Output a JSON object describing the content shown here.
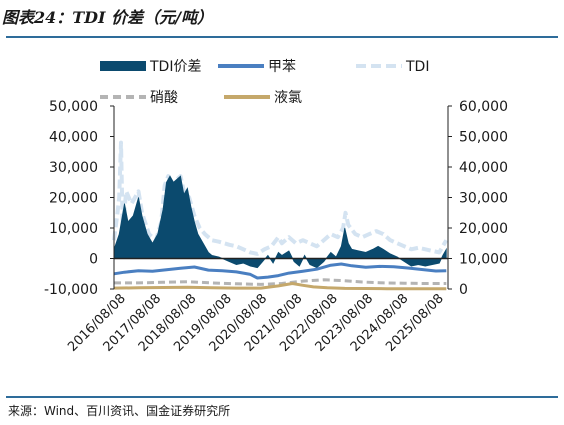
{
  "title": "图表24：TDI 价差（元/吨）",
  "source": "来源：Wind、百川资讯、国金证券研究所",
  "colors": {
    "spread": "#0b4a6e",
    "toluene": "#4a7fc1",
    "tdi": "#d4e3f1",
    "nitric": "#b4b4b4",
    "chlorine": "#c5a86b",
    "rule": "#2e6c9a"
  },
  "chart_data": {
    "type": "area",
    "legend": [
      {
        "name": "TDI价差",
        "style": "area"
      },
      {
        "name": "甲苯",
        "style": "line"
      },
      {
        "name": "TDI",
        "style": "dashed"
      },
      {
        "name": "硝酸",
        "style": "dashed"
      },
      {
        "name": "液氯",
        "style": "line"
      }
    ],
    "x_ticks": [
      "2016/08/08",
      "2017/08/08",
      "2018/08/08",
      "2019/08/08",
      "2020/08/08",
      "2021/08/08",
      "2022/08/08",
      "2023/08/08",
      "2024/08/08",
      "2025/08/08"
    ],
    "x_range": [
      2016.2,
      2025.75
    ],
    "y_left": {
      "ticks": [
        "-10,000",
        "0",
        "10,000",
        "20,000",
        "30,000",
        "40,000",
        "50,000"
      ],
      "range": [
        -10000,
        50000
      ]
    },
    "y_right": {
      "ticks": [
        "0",
        "10,000",
        "20,000",
        "30,000",
        "40,000",
        "50,000",
        "60,000"
      ],
      "range": [
        0,
        60000
      ]
    },
    "series": [
      {
        "name": "TDI价差",
        "axis": "left",
        "points": [
          [
            2016.2,
            3000
          ],
          [
            2016.35,
            8000
          ],
          [
            2016.5,
            18000
          ],
          [
            2016.6,
            12000
          ],
          [
            2016.75,
            14000
          ],
          [
            2016.9,
            20000
          ],
          [
            2017.0,
            14000
          ],
          [
            2017.15,
            8000
          ],
          [
            2017.3,
            5000
          ],
          [
            2017.45,
            8000
          ],
          [
            2017.6,
            16000
          ],
          [
            2017.7,
            25000
          ],
          [
            2017.8,
            27000
          ],
          [
            2017.9,
            25000
          ],
          [
            2018.0,
            26000
          ],
          [
            2018.1,
            27000
          ],
          [
            2018.2,
            21000
          ],
          [
            2018.3,
            23000
          ],
          [
            2018.4,
            17000
          ],
          [
            2018.5,
            12000
          ],
          [
            2018.6,
            8000
          ],
          [
            2018.75,
            5000
          ],
          [
            2018.9,
            2000
          ],
          [
            2019.0,
            1000
          ],
          [
            2019.2,
            500
          ],
          [
            2019.5,
            -1000
          ],
          [
            2019.7,
            -2000
          ],
          [
            2019.9,
            -1500
          ],
          [
            2020.1,
            -2500
          ],
          [
            2020.3,
            -3000
          ],
          [
            2020.45,
            -1000
          ],
          [
            2020.6,
            1000
          ],
          [
            2020.75,
            -1500
          ],
          [
            2020.9,
            2000
          ],
          [
            2021.0,
            1000
          ],
          [
            2021.2,
            2500
          ],
          [
            2021.35,
            -1000
          ],
          [
            2021.5,
            -2500
          ],
          [
            2021.65,
            1000
          ],
          [
            2021.8,
            -2000
          ],
          [
            2022.0,
            -3000
          ],
          [
            2022.2,
            -1000
          ],
          [
            2022.4,
            2000
          ],
          [
            2022.55,
            500
          ],
          [
            2022.7,
            4000
          ],
          [
            2022.8,
            10000
          ],
          [
            2022.9,
            5000
          ],
          [
            2023.0,
            3000
          ],
          [
            2023.2,
            2500
          ],
          [
            2023.4,
            2000
          ],
          [
            2023.6,
            3000
          ],
          [
            2023.75,
            4000
          ],
          [
            2023.9,
            3000
          ],
          [
            2024.1,
            1500
          ],
          [
            2024.3,
            500
          ],
          [
            2024.5,
            -1000
          ],
          [
            2024.7,
            -2500
          ],
          [
            2024.9,
            -2000
          ],
          [
            2025.1,
            -2500
          ],
          [
            2025.3,
            -2000
          ],
          [
            2025.5,
            -1500
          ],
          [
            2025.6,
            1000
          ],
          [
            2025.7,
            3000
          ]
        ]
      },
      {
        "name": "TDI",
        "axis": "right",
        "points": [
          [
            2016.2,
            16000
          ],
          [
            2016.3,
            25000
          ],
          [
            2016.35,
            30000
          ],
          [
            2016.4,
            48000
          ],
          [
            2016.45,
            20000
          ],
          [
            2016.55,
            32000
          ],
          [
            2016.7,
            28000
          ],
          [
            2016.9,
            32000
          ],
          [
            2017.0,
            25000
          ],
          [
            2017.2,
            18000
          ],
          [
            2017.4,
            16000
          ],
          [
            2017.55,
            22000
          ],
          [
            2017.65,
            34000
          ],
          [
            2017.75,
            37000
          ],
          [
            2017.9,
            33000
          ],
          [
            2018.0,
            36000
          ],
          [
            2018.1,
            37000
          ],
          [
            2018.2,
            32000
          ],
          [
            2018.35,
            30000
          ],
          [
            2018.5,
            24000
          ],
          [
            2018.65,
            20000
          ],
          [
            2018.8,
            18000
          ],
          [
            2019.0,
            16000
          ],
          [
            2019.2,
            15500
          ],
          [
            2019.5,
            14500
          ],
          [
            2019.7,
            14000
          ],
          [
            2019.9,
            13000
          ],
          [
            2020.1,
            12000
          ],
          [
            2020.3,
            11500
          ],
          [
            2020.5,
            13000
          ],
          [
            2020.7,
            14000
          ],
          [
            2020.9,
            17000
          ],
          [
            2021.0,
            15000
          ],
          [
            2021.2,
            17000
          ],
          [
            2021.4,
            15000
          ],
          [
            2021.6,
            16000
          ],
          [
            2021.8,
            15000
          ],
          [
            2022.0,
            14000
          ],
          [
            2022.2,
            16000
          ],
          [
            2022.4,
            18000
          ],
          [
            2022.6,
            17000
          ],
          [
            2022.75,
            20000
          ],
          [
            2022.82,
            25000
          ],
          [
            2022.9,
            21000
          ],
          [
            2023.1,
            18000
          ],
          [
            2023.3,
            17000
          ],
          [
            2023.5,
            18000
          ],
          [
            2023.7,
            19000
          ],
          [
            2023.9,
            18000
          ],
          [
            2024.1,
            16000
          ],
          [
            2024.3,
            15000
          ],
          [
            2024.5,
            14000
          ],
          [
            2024.7,
            13000
          ],
          [
            2024.9,
            13500
          ],
          [
            2025.1,
            13000
          ],
          [
            2025.3,
            12500
          ],
          [
            2025.5,
            12000
          ],
          [
            2025.6,
            14000
          ],
          [
            2025.7,
            16000
          ]
        ]
      },
      {
        "name": "甲苯",
        "axis": "right",
        "points": [
          [
            2016.2,
            5000
          ],
          [
            2016.5,
            5500
          ],
          [
            2016.9,
            6000
          ],
          [
            2017.3,
            5800
          ],
          [
            2017.7,
            6300
          ],
          [
            2018.1,
            6800
          ],
          [
            2018.5,
            7200
          ],
          [
            2018.9,
            6200
          ],
          [
            2019.3,
            6000
          ],
          [
            2019.7,
            5600
          ],
          [
            2020.1,
            4800
          ],
          [
            2020.3,
            3600
          ],
          [
            2020.6,
            3900
          ],
          [
            2020.9,
            4400
          ],
          [
            2021.2,
            5200
          ],
          [
            2021.6,
            5800
          ],
          [
            2022.0,
            6500
          ],
          [
            2022.4,
            7800
          ],
          [
            2022.7,
            8200
          ],
          [
            2023.0,
            7600
          ],
          [
            2023.4,
            7100
          ],
          [
            2023.8,
            7400
          ],
          [
            2024.2,
            7300
          ],
          [
            2024.6,
            6900
          ],
          [
            2025.0,
            6400
          ],
          [
            2025.4,
            5900
          ],
          [
            2025.7,
            6000
          ]
        ]
      },
      {
        "name": "硝酸",
        "axis": "right",
        "points": [
          [
            2016.2,
            2000
          ],
          [
            2016.9,
            2000
          ],
          [
            2017.6,
            2200
          ],
          [
            2018.3,
            2400
          ],
          [
            2019.0,
            2000
          ],
          [
            2019.7,
            1700
          ],
          [
            2020.4,
            1500
          ],
          [
            2021.0,
            1800
          ],
          [
            2021.6,
            2600
          ],
          [
            2022.2,
            3000
          ],
          [
            2022.7,
            2800
          ],
          [
            2023.3,
            2300
          ],
          [
            2023.9,
            2000
          ],
          [
            2024.5,
            1900
          ],
          [
            2025.1,
            1800
          ],
          [
            2025.7,
            1800
          ]
        ]
      },
      {
        "name": "液氯",
        "axis": "right",
        "points": [
          [
            2016.2,
            300
          ],
          [
            2016.9,
            400
          ],
          [
            2017.6,
            500
          ],
          [
            2018.3,
            600
          ],
          [
            2019.0,
            400
          ],
          [
            2019.7,
            300
          ],
          [
            2020.4,
            300
          ],
          [
            2020.9,
            1000
          ],
          [
            2021.3,
            1800
          ],
          [
            2021.6,
            1200
          ],
          [
            2021.9,
            700
          ],
          [
            2022.3,
            400
          ],
          [
            2022.8,
            200
          ],
          [
            2023.4,
            150
          ],
          [
            2024.0,
            100
          ],
          [
            2024.6,
            100
          ],
          [
            2025.2,
            100
          ],
          [
            2025.7,
            100
          ]
        ]
      }
    ]
  }
}
